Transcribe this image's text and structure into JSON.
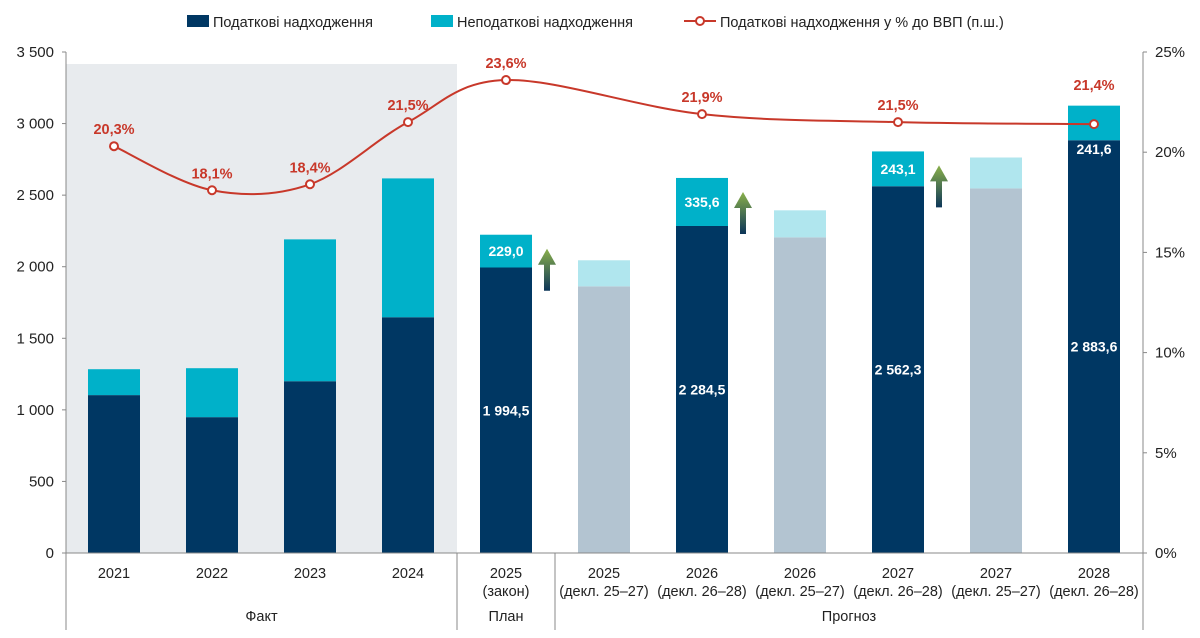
{
  "chart_data": {
    "type": "bar",
    "stacked": true,
    "legend": {
      "placement": "top",
      "entries": [
        "Податкові надходження",
        "Неподаткові надходження",
        "Податкові надходження у % до ВВП (п.ш.)"
      ]
    },
    "categories": [
      [
        "2021"
      ],
      [
        "2022"
      ],
      [
        "2023"
      ],
      [
        "2024"
      ],
      [
        "2025",
        "(закон)"
      ],
      [
        "2025",
        "(декл. 25–27)"
      ],
      [
        "2026",
        "(декл. 26–28)"
      ],
      [
        "2026",
        "(декл. 25–27)"
      ],
      [
        "2027",
        "(декл. 26–28)"
      ],
      [
        "2027",
        "(декл. 25–27)"
      ],
      [
        "2028",
        "(декл. 26–28)"
      ]
    ],
    "groups": [
      {
        "label": "Факт",
        "from": 0,
        "to": 3,
        "shaded": true
      },
      {
        "label": "План",
        "from": 4,
        "to": 4
      },
      {
        "label": "Прогноз",
        "from": 5,
        "to": 10
      }
    ],
    "faded": [
      false,
      false,
      false,
      false,
      false,
      true,
      false,
      true,
      false,
      true,
      false
    ],
    "series": [
      {
        "name": "Податкові надходження",
        "color": "#003763",
        "faded_color": "#b3c4d1",
        "values": [
          1103,
          949,
          1200,
          1647,
          1994.5,
          1863,
          2284.5,
          2205,
          2562.3,
          2547,
          2883.6
        ],
        "labels": [
          null,
          null,
          null,
          null,
          "1 994,5",
          null,
          "2 284,5",
          null,
          "2 562,3",
          null,
          "2 883,6"
        ]
      },
      {
        "name": "Неподаткові надходження",
        "color": "#00b1c9",
        "faded_color": "#b0e6ee",
        "values": [
          181,
          342,
          991,
          970,
          229.0,
          182,
          335.6,
          189,
          243.1,
          216,
          241.6
        ],
        "labels": [
          null,
          null,
          null,
          null,
          "229,0",
          null,
          "335,6",
          null,
          "243,1",
          null,
          "241,6"
        ]
      },
      {
        "name": "Податкові надходження у % до ВВП (п.ш.)",
        "type": "line",
        "axis": "right",
        "color": "#c8382a",
        "points": [
          [
            0,
            20.3
          ],
          [
            1,
            18.1
          ],
          [
            2,
            18.4
          ],
          [
            3,
            21.5
          ],
          [
            4,
            23.6
          ],
          [
            6,
            21.9
          ],
          [
            8,
            21.5
          ],
          [
            10,
            21.4
          ]
        ],
        "labels": [
          "20,3%",
          "18,1%",
          "18,4%",
          "21,5%",
          "23,6%",
          "21,9%",
          "21,5%",
          "21,4%"
        ]
      }
    ],
    "arrows_after": [
      4,
      6,
      8
    ],
    "ylim": [
      0,
      3500
    ],
    "yticks": [
      "0",
      "500",
      "1 000",
      "1 500",
      "2 000",
      "2 500",
      "3 000",
      "3 500"
    ],
    "y2lim": [
      0,
      25
    ],
    "y2ticks": [
      "0%",
      "5%",
      "10%",
      "15%",
      "20%",
      "25%"
    ],
    "grid": false
  }
}
